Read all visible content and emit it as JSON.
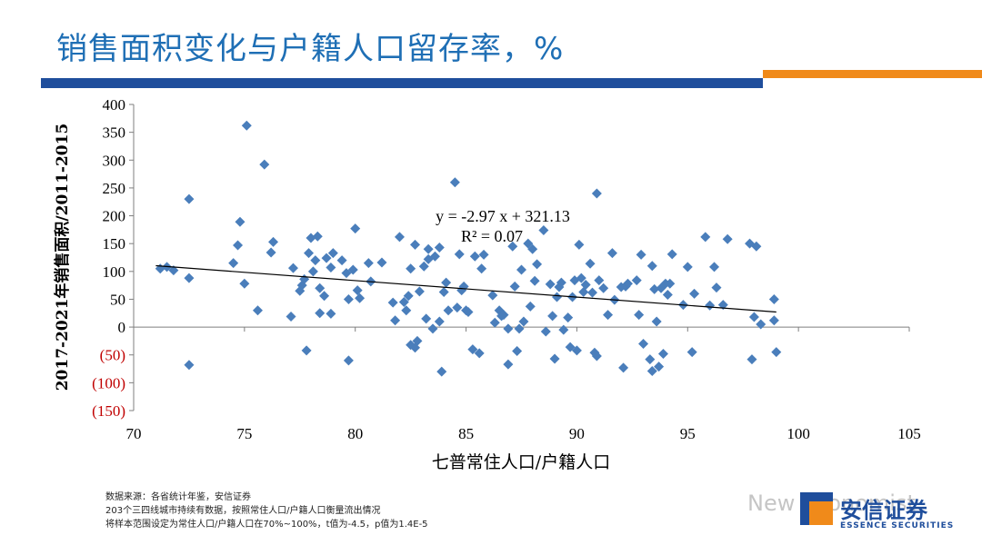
{
  "slide": {
    "title": "销售面积变化与户籍人口留存率，%"
  },
  "footer": {
    "lines": [
      "数据来源：各省统计年鉴，安信证券",
      "203个三四线城市持续有数据，按照常住人口/户籍人口衡量流出情况",
      "将样本范围设定为常住人口/户籍人口在70%~100%，t值为-4.5，p值为1.4E-5"
    ]
  },
  "logo": {
    "cn": "安信证券",
    "en": "ESSENCE SECURITIES"
  },
  "watermark": {
    "text": "New Economist"
  },
  "colors": {
    "title": "#1f6fb5",
    "bar_blue": "#1f4e9c",
    "bar_orange": "#f08a1a",
    "point": "#4a7ebb",
    "negative_tick": "#c00000"
  },
  "chart_data": {
    "type": "scatter",
    "xlabel": "七普常住人口/户籍人口",
    "ylabel": "2017-2021年销售面积/2011-2015",
    "xlim": [
      70,
      105
    ],
    "ylim": [
      -150,
      400
    ],
    "x_ticks": [
      "70",
      "75",
      "80",
      "85",
      "90",
      "95",
      "100",
      "105"
    ],
    "y_ticks": [
      "400",
      "350",
      "300",
      "250",
      "200",
      "150",
      "100",
      "50",
      "0",
      "(50)",
      "(100)",
      "(150)"
    ],
    "grid": false,
    "trendline": {
      "slope": -2.97,
      "intercept": 321.13,
      "x_range": [
        71,
        99
      ]
    },
    "equation_label": "y = -2.97 x + 321.13",
    "r2_label": "R² = 0.07",
    "points": [
      [
        71.2,
        105
      ],
      [
        71.5,
        108
      ],
      [
        71.8,
        102
      ],
      [
        72.5,
        230
      ],
      [
        72.5,
        88
      ],
      [
        72.5,
        -68
      ],
      [
        74.5,
        115
      ],
      [
        74.7,
        147
      ],
      [
        74.8,
        189
      ],
      [
        75.0,
        78
      ],
      [
        75.1,
        362
      ],
      [
        75.6,
        30
      ],
      [
        75.9,
        292
      ],
      [
        76.2,
        134
      ],
      [
        76.3,
        153
      ],
      [
        77.1,
        19
      ],
      [
        77.2,
        106
      ],
      [
        77.5,
        65
      ],
      [
        77.6,
        75
      ],
      [
        77.7,
        86
      ],
      [
        77.8,
        -42
      ],
      [
        77.9,
        133
      ],
      [
        78.0,
        160
      ],
      [
        78.1,
        100
      ],
      [
        78.2,
        120
      ],
      [
        78.3,
        163
      ],
      [
        78.4,
        70
      ],
      [
        78.4,
        25
      ],
      [
        78.6,
        56
      ],
      [
        78.7,
        124
      ],
      [
        78.9,
        107
      ],
      [
        78.9,
        24
      ],
      [
        79.0,
        133
      ],
      [
        79.4,
        120
      ],
      [
        79.6,
        97
      ],
      [
        79.7,
        -60
      ],
      [
        79.7,
        50
      ],
      [
        79.9,
        103
      ],
      [
        80.0,
        177
      ],
      [
        80.1,
        66
      ],
      [
        80.2,
        52
      ],
      [
        80.6,
        115
      ],
      [
        80.7,
        82
      ],
      [
        81.2,
        116
      ],
      [
        81.7,
        44
      ],
      [
        81.8,
        12
      ],
      [
        82.0,
        162
      ],
      [
        82.2,
        45
      ],
      [
        82.3,
        30
      ],
      [
        82.4,
        56
      ],
      [
        82.5,
        105
      ],
      [
        82.5,
        -32
      ],
      [
        82.7,
        148
      ],
      [
        82.7,
        -37
      ],
      [
        82.8,
        -25
      ],
      [
        82.9,
        64
      ],
      [
        83.1,
        109
      ],
      [
        83.2,
        15
      ],
      [
        83.3,
        140
      ],
      [
        83.3,
        122
      ],
      [
        83.5,
        -3
      ],
      [
        83.6,
        127
      ],
      [
        83.8,
        10
      ],
      [
        83.8,
        143
      ],
      [
        83.9,
        -80
      ],
      [
        84.0,
        63
      ],
      [
        84.1,
        80
      ],
      [
        84.2,
        30
      ],
      [
        84.5,
        260
      ],
      [
        84.6,
        35
      ],
      [
        84.7,
        131
      ],
      [
        84.8,
        66
      ],
      [
        84.9,
        73
      ],
      [
        85.0,
        30
      ],
      [
        85.1,
        27
      ],
      [
        85.3,
        -40
      ],
      [
        85.4,
        127
      ],
      [
        85.6,
        -47
      ],
      [
        85.7,
        105
      ],
      [
        85.8,
        130
      ],
      [
        86.2,
        57
      ],
      [
        86.3,
        8
      ],
      [
        86.5,
        30
      ],
      [
        86.6,
        20
      ],
      [
        86.7,
        22
      ],
      [
        86.9,
        -67
      ],
      [
        86.9,
        -3
      ],
      [
        87.1,
        145
      ],
      [
        87.2,
        73
      ],
      [
        87.3,
        -43
      ],
      [
        87.4,
        -3
      ],
      [
        87.5,
        103
      ],
      [
        87.6,
        10
      ],
      [
        87.8,
        150
      ],
      [
        87.9,
        37
      ],
      [
        88.0,
        140
      ],
      [
        88.1,
        83
      ],
      [
        88.2,
        113
      ],
      [
        88.5,
        174
      ],
      [
        88.6,
        -8
      ],
      [
        88.8,
        77
      ],
      [
        88.9,
        20
      ],
      [
        89.0,
        -57
      ],
      [
        89.1,
        54
      ],
      [
        89.2,
        72
      ],
      [
        89.3,
        80
      ],
      [
        89.4,
        -5
      ],
      [
        89.6,
        17
      ],
      [
        89.7,
        -36
      ],
      [
        89.8,
        54
      ],
      [
        89.9,
        84
      ],
      [
        90.0,
        -42
      ],
      [
        90.1,
        148
      ],
      [
        90.2,
        88
      ],
      [
        90.3,
        63
      ],
      [
        90.4,
        76
      ],
      [
        90.6,
        114
      ],
      [
        90.7,
        62
      ],
      [
        90.8,
        -46
      ],
      [
        90.9,
        -52
      ],
      [
        90.9,
        240
      ],
      [
        91.0,
        84
      ],
      [
        91.2,
        70
      ],
      [
        91.4,
        22
      ],
      [
        91.6,
        133
      ],
      [
        91.7,
        49
      ],
      [
        92.0,
        72
      ],
      [
        92.1,
        -73
      ],
      [
        92.2,
        73
      ],
      [
        92.3,
        78
      ],
      [
        92.7,
        84
      ],
      [
        92.8,
        22
      ],
      [
        92.9,
        130
      ],
      [
        93.0,
        -30
      ],
      [
        93.3,
        -58
      ],
      [
        93.4,
        -79
      ],
      [
        93.4,
        110
      ],
      [
        93.5,
        68
      ],
      [
        93.6,
        10
      ],
      [
        93.7,
        -71
      ],
      [
        93.8,
        70
      ],
      [
        93.9,
        -48
      ],
      [
        94.0,
        78
      ],
      [
        94.1,
        58
      ],
      [
        94.2,
        78
      ],
      [
        94.3,
        131
      ],
      [
        94.8,
        40
      ],
      [
        95.0,
        108
      ],
      [
        95.2,
        -45
      ],
      [
        95.3,
        60
      ],
      [
        95.8,
        162
      ],
      [
        96.0,
        39
      ],
      [
        96.2,
        108
      ],
      [
        96.3,
        71
      ],
      [
        96.6,
        40
      ],
      [
        96.8,
        158
      ],
      [
        97.8,
        150
      ],
      [
        97.9,
        -58
      ],
      [
        98.0,
        18
      ],
      [
        98.1,
        145
      ],
      [
        98.3,
        5
      ],
      [
        98.9,
        50
      ],
      [
        98.9,
        12
      ],
      [
        99.0,
        -45
      ]
    ]
  }
}
